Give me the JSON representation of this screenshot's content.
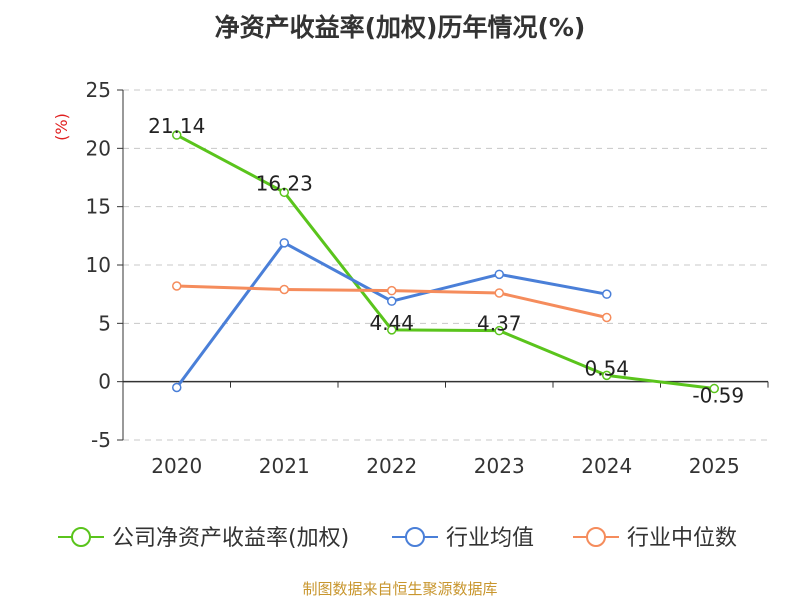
{
  "chart_data": {
    "type": "line",
    "title": "净资产收益率(加权)历年情况(%)",
    "ylabel": "(%)",
    "xlabel": "",
    "categories": [
      "2020",
      "2021",
      "2022",
      "2023",
      "2024",
      "2025"
    ],
    "ylim": [
      -5,
      25
    ],
    "yticks": [
      -5,
      0,
      5,
      10,
      15,
      20,
      25
    ],
    "grid": true,
    "legend_position": "bottom",
    "series": [
      {
        "name": "公司净资产收益率(加权)",
        "color": "#5ac41c",
        "values": [
          21.14,
          16.23,
          4.44,
          4.37,
          0.54,
          -0.59
        ],
        "labels": [
          "21.14",
          "16.23",
          "4.44",
          "4.37",
          "0.54",
          "-0.59"
        ]
      },
      {
        "name": "行业均值",
        "color": "#4a7fd8",
        "values": [
          -0.5,
          11.9,
          6.9,
          9.2,
          7.5,
          null
        ]
      },
      {
        "name": "行业中位数",
        "color": "#f58c5c",
        "values": [
          8.2,
          7.9,
          7.8,
          7.6,
          5.5,
          null
        ]
      }
    ]
  },
  "source": "制图数据来自恒生聚源数据库"
}
